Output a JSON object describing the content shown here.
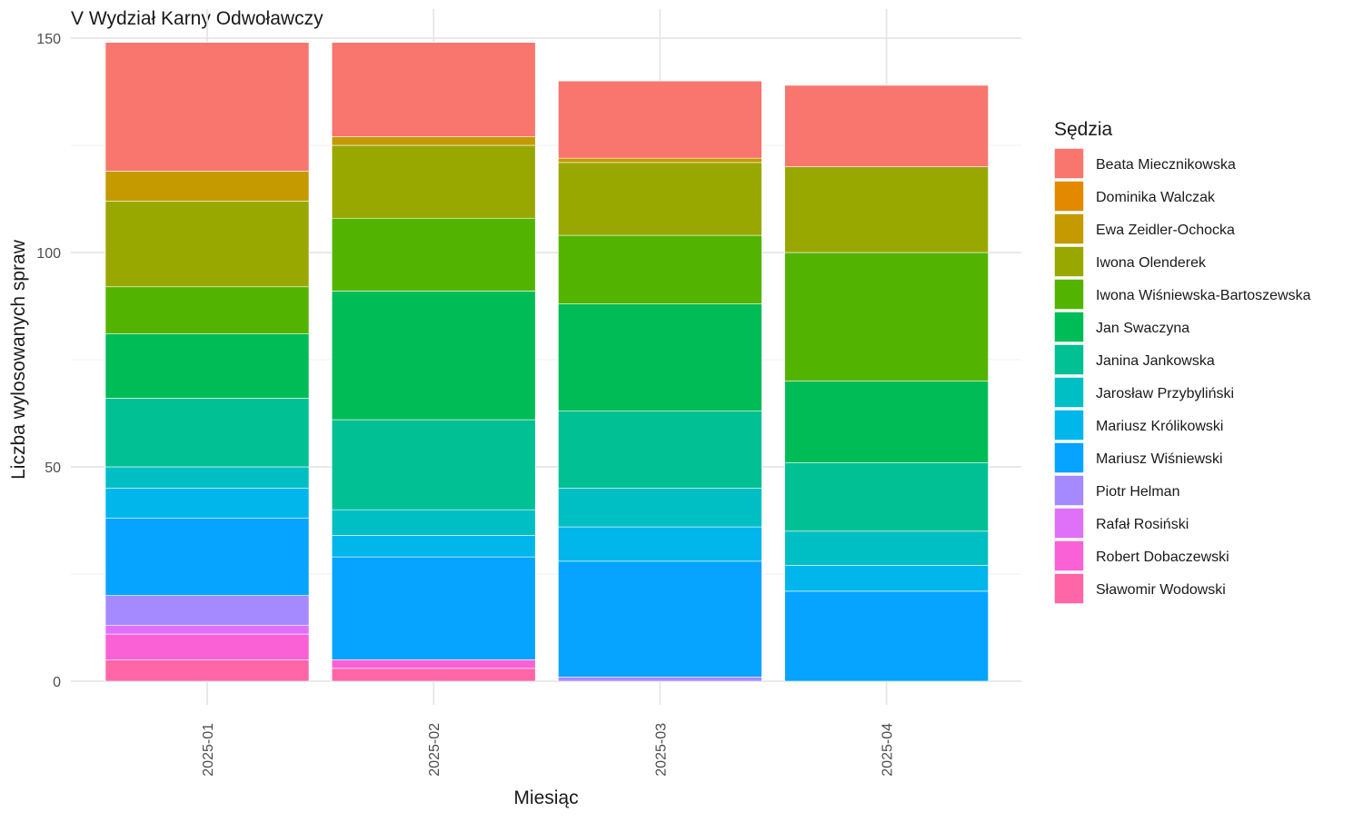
{
  "chart_data": {
    "type": "bar",
    "stacked": true,
    "title": "V Wydział Karny Odwoławczy",
    "xlabel": "Miesiąc",
    "ylabel": "Liczba wylosowanych spraw",
    "ylim": [
      0,
      150
    ],
    "yticks": [
      0,
      50,
      100,
      150
    ],
    "grid": true,
    "legend_title": "Sędzia",
    "legend_position": "right",
    "categories": [
      "2025-01",
      "2025-02",
      "2025-03",
      "2025-04"
    ],
    "series": [
      {
        "name": "Beata Miecznikowska",
        "color": "#F8766D",
        "values": [
          30,
          22,
          18,
          19
        ]
      },
      {
        "name": "Dominika Walczak",
        "color": "#E38900",
        "values": [
          0,
          0,
          0,
          0
        ]
      },
      {
        "name": "Ewa Zeidler-Ochocka",
        "color": "#C49A00",
        "values": [
          7,
          2,
          1,
          0
        ]
      },
      {
        "name": "Iwona Olenderek",
        "color": "#99A800",
        "values": [
          20,
          17,
          17,
          20
        ]
      },
      {
        "name": "Iwona Wiśniewska-Bartoszewska",
        "color": "#53B400",
        "values": [
          11,
          17,
          16,
          30
        ]
      },
      {
        "name": "Jan Swaczyna",
        "color": "#00BC56",
        "values": [
          15,
          30,
          25,
          19
        ]
      },
      {
        "name": "Janina Jankowska",
        "color": "#00C094",
        "values": [
          16,
          21,
          18,
          16
        ]
      },
      {
        "name": "Jarosław Przybyliński",
        "color": "#00BFC4",
        "values": [
          5,
          6,
          9,
          8
        ]
      },
      {
        "name": "Mariusz Królikowski",
        "color": "#00B6EB",
        "values": [
          7,
          5,
          8,
          6
        ]
      },
      {
        "name": "Mariusz Wiśniewski",
        "color": "#06A4FF",
        "values": [
          18,
          24,
          27,
          21
        ]
      },
      {
        "name": "Piotr Helman",
        "color": "#A58AFF",
        "values": [
          7,
          0,
          1,
          0
        ]
      },
      {
        "name": "Rafał Rosiński",
        "color": "#DF70F8",
        "values": [
          2,
          0,
          0,
          0
        ]
      },
      {
        "name": "Robert Dobaczewski",
        "color": "#FB61D7",
        "values": [
          6,
          2,
          0,
          0
        ]
      },
      {
        "name": "Sławomir Wodowski",
        "color": "#FF66A8",
        "values": [
          5,
          3,
          0,
          0
        ]
      }
    ]
  }
}
